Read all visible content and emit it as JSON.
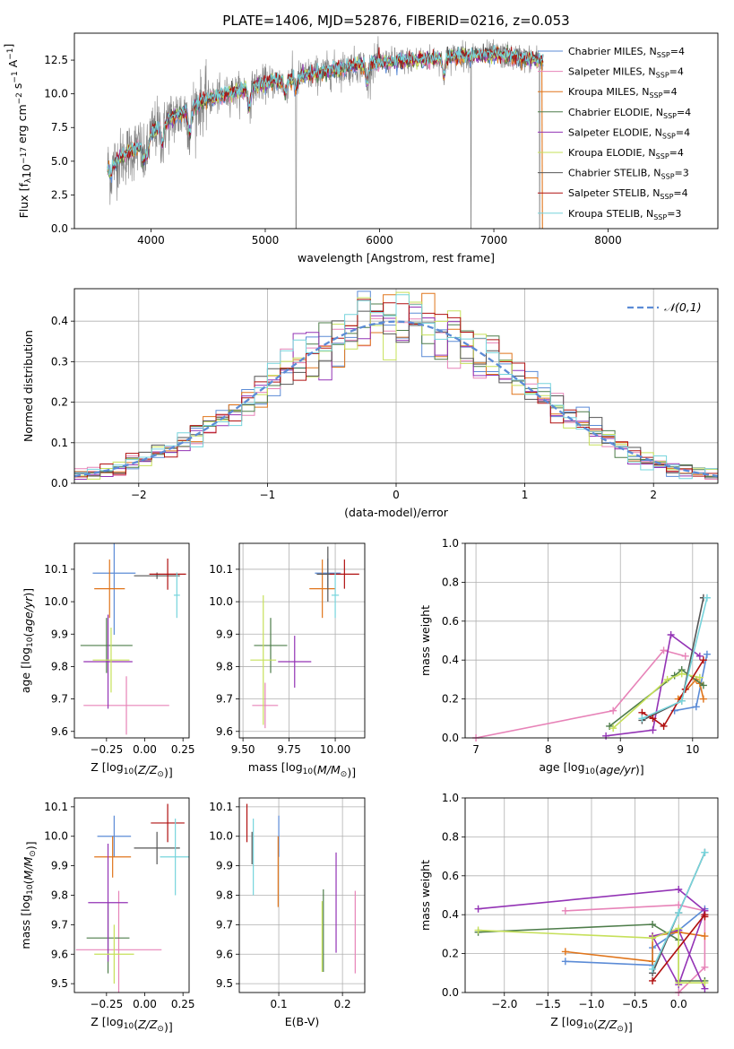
{
  "colors": {
    "Chabrier MILES": "#5b8bd6",
    "Salpeter MILES": "#e783b8",
    "Kroupa MILES": "#e0751b",
    "Chabrier ELODIE": "#4e7d4a",
    "Salpeter ELODIE": "#9333b5",
    "Kroupa ELODIE": "#c6e05a",
    "Chabrier STELIB": "#555555",
    "Salpeter STELIB": "#b01010",
    "Kroupa STELIB": "#76d4dc"
  },
  "chart_data": [
    {
      "id": "spectrum",
      "type": "line",
      "title": "PLATE=1406, MJD=52876, FIBERID=0216, z=0.053",
      "xlabel": "wavelength [Angstrom, rest frame]",
      "ylabel": "Flux [f_λ 10^-17 erg cm^-2 s^-1 A^-1]",
      "xlim": [
        3330,
        8960
      ],
      "ylim": [
        0,
        14.5
      ],
      "xticks": [
        4000,
        5000,
        6000,
        7000,
        8000
      ],
      "yticks": [
        0.0,
        2.5,
        5.0,
        7.5,
        10.0,
        12.5
      ],
      "grid": false,
      "legend_position": "top-right",
      "legend": [
        {
          "model": "Chabrier MILES",
          "nssp": "4"
        },
        {
          "model": "Salpeter MILES",
          "nssp": "4"
        },
        {
          "model": "Kroupa MILES",
          "nssp": "4"
        },
        {
          "model": "Chabrier ELODIE",
          "nssp": "4"
        },
        {
          "model": "Salpeter ELODIE",
          "nssp": "4"
        },
        {
          "model": "Kroupa ELODIE",
          "nssp": "4"
        },
        {
          "model": "Chabrier STELIB",
          "nssp": "3"
        },
        {
          "model": "Salpeter STELIB",
          "nssp": "4"
        },
        {
          "model": "Kroupa STELIB",
          "nssp": "3"
        }
      ],
      "data_x_range": [
        3620,
        7430
      ],
      "continuum": [
        [
          3620,
          4.6
        ],
        [
          3700,
          5.0
        ],
        [
          3800,
          5.6
        ],
        [
          3900,
          6.1
        ],
        [
          4000,
          7.0
        ],
        [
          4100,
          7.8
        ],
        [
          4300,
          8.7
        ],
        [
          4500,
          9.6
        ],
        [
          4800,
          10.3
        ],
        [
          5000,
          10.8
        ],
        [
          5200,
          11.1
        ],
        [
          5500,
          11.6
        ],
        [
          5800,
          12.1
        ],
        [
          6100,
          12.4
        ],
        [
          6400,
          12.6
        ],
        [
          6700,
          12.8
        ],
        [
          7000,
          12.9
        ],
        [
          7200,
          12.7
        ],
        [
          7430,
          12.5
        ]
      ],
      "absorption_lines": [
        [
          3650,
          0.8
        ],
        [
          3934,
          1.5
        ],
        [
          3968,
          1.3
        ],
        [
          4101,
          1.5
        ],
        [
          4340,
          2.0
        ],
        [
          4861,
          1.5
        ],
        [
          5175,
          1.2
        ],
        [
          5270,
          0.8
        ],
        [
          5893,
          1.3
        ],
        [
          6563,
          1.3
        ]
      ],
      "data_dropouts": [
        5270,
        6800,
        7400
      ]
    },
    {
      "id": "residuals",
      "type": "step-histogram",
      "xlabel": "(data-model)/error",
      "ylabel": "Normed distribution",
      "xlim": [
        -2.5,
        2.5
      ],
      "ylim": [
        0,
        0.48
      ],
      "xticks": [
        -2,
        -1,
        0,
        1,
        2
      ],
      "yticks": [
        0.0,
        0.1,
        0.2,
        0.3,
        0.4
      ],
      "grid": true,
      "legend": "𝒩(0,1)",
      "legend_position": "top-right",
      "bin_width": 0.1,
      "bin_start": -2.5,
      "reference_curve": {
        "type": "normal",
        "mean": 0,
        "sigma": 1
      }
    },
    {
      "id": "z-age",
      "type": "errorbar",
      "xlabel": "Z [log10(Z/Z⊙)]",
      "ylabel": "age  [log10(age/yr)]",
      "xlim": [
        -0.46,
        0.29
      ],
      "ylim": [
        9.58,
        10.18
      ],
      "xticks": [
        -0.25,
        0.0,
        0.25
      ],
      "xticklabels": [
        "−0.25",
        "0.00",
        "0.25"
      ],
      "yticks": [
        9.6,
        9.7,
        9.8,
        9.9,
        10.0,
        10.1
      ],
      "grid": false,
      "points": [
        {
          "model": "Chabrier MILES",
          "x": -0.2,
          "y": 10.088,
          "xerr": 0.14,
          "yerr": 0.19
        },
        {
          "model": "Salpeter MILES",
          "x": -0.12,
          "y": 9.68,
          "xerr": 0.28,
          "yerr": 0.09
        },
        {
          "model": "Kroupa MILES",
          "x": -0.23,
          "y": 10.04,
          "xerr": 0.1,
          "yerr": 0.09
        },
        {
          "model": "Chabrier ELODIE",
          "x": -0.25,
          "y": 9.865,
          "xerr": 0.17,
          "yerr": 0.085
        },
        {
          "model": "Salpeter ELODIE",
          "x": -0.24,
          "y": 9.815,
          "xerr": 0.16,
          "yerr": 0.145
        },
        {
          "model": "Kroupa ELODIE",
          "x": -0.22,
          "y": 9.82,
          "xerr": 0.12,
          "yerr": 0.1
        },
        {
          "model": "Chabrier STELIB",
          "x": 0.08,
          "y": 10.08,
          "xerr": 0.15,
          "yerr": 0.01
        },
        {
          "model": "Salpeter STELIB",
          "x": 0.15,
          "y": 10.085,
          "xerr": 0.12,
          "yerr": 0.048
        },
        {
          "model": "Kroupa STELIB",
          "x": 0.21,
          "y": 10.02,
          "xerr": 0.02,
          "yerr": 0.07
        }
      ]
    },
    {
      "id": "mass-age",
      "type": "errorbar",
      "xlabel": "mass [log10(M/M⊙)]",
      "ylabel": "",
      "xlim": [
        9.48,
        10.16
      ],
      "ylim": [
        9.58,
        10.18
      ],
      "xticks": [
        9.5,
        9.75,
        10.0
      ],
      "xticklabels": [
        "9.50",
        "9.75",
        "10.00"
      ],
      "yticks": [
        9.6,
        9.7,
        9.8,
        9.9,
        10.0,
        10.1
      ],
      "grid": true,
      "points": [
        {
          "model": "Chabrier MILES",
          "x": 9.96,
          "y": 10.088,
          "xerr": 0.07,
          "yerr": 0.045
        },
        {
          "model": "Salpeter MILES",
          "x": 9.62,
          "y": 9.68,
          "xerr": 0.07,
          "yerr": 0.07
        },
        {
          "model": "Kroupa MILES",
          "x": 9.93,
          "y": 10.04,
          "xerr": 0.07,
          "yerr": 0.09
        },
        {
          "model": "Chabrier ELODIE",
          "x": 9.65,
          "y": 9.865,
          "xerr": 0.09,
          "yerr": 0.085
        },
        {
          "model": "Salpeter ELODIE",
          "x": 9.78,
          "y": 9.815,
          "xerr": 0.09,
          "yerr": 0.08
        },
        {
          "model": "Kroupa ELODIE",
          "x": 9.61,
          "y": 9.82,
          "xerr": 0.07,
          "yerr": 0.2
        },
        {
          "model": "Chabrier STELIB",
          "x": 9.96,
          "y": 10.085,
          "xerr": 0.06,
          "yerr": 0.085
        },
        {
          "model": "Salpeter STELIB",
          "x": 10.05,
          "y": 10.085,
          "xerr": 0.08,
          "yerr": 0.045
        },
        {
          "model": "Kroupa STELIB",
          "x": 10.0,
          "y": 10.02,
          "xerr": 0.02,
          "yerr": 0.07
        }
      ]
    },
    {
      "id": "age-weight",
      "type": "line-markers",
      "xlabel": "age  [log10(age/yr)]",
      "ylabel": "mass weight",
      "xlim": [
        6.85,
        10.35
      ],
      "ylim": [
        0,
        1.0
      ],
      "xticks": [
        7,
        8,
        9,
        10
      ],
      "yticks": [
        0.0,
        0.2,
        0.4,
        0.6,
        0.8,
        1.0
      ],
      "grid": true,
      "series": [
        {
          "model": "Chabrier MILES",
          "x": [
            9.75,
            10.05,
            10.2
          ],
          "y": [
            0.14,
            0.16,
            0.43
          ]
        },
        {
          "model": "Salpeter MILES",
          "x": [
            7.0,
            8.9,
            9.6,
            9.9
          ],
          "y": [
            0.0,
            0.14,
            0.45,
            0.42
          ]
        },
        {
          "model": "Kroupa MILES",
          "x": [
            9.8,
            10.05,
            10.1,
            10.15
          ],
          "y": [
            0.2,
            0.3,
            0.28,
            0.2
          ]
        },
        {
          "model": "Chabrier ELODIE",
          "x": [
            8.85,
            9.75,
            9.85,
            10.15
          ],
          "y": [
            0.06,
            0.32,
            0.35,
            0.27
          ]
        },
        {
          "model": "Salpeter ELODIE",
          "x": [
            8.8,
            9.45,
            9.7,
            10.1
          ],
          "y": [
            0.01,
            0.04,
            0.53,
            0.42
          ]
        },
        {
          "model": "Kroupa ELODIE",
          "x": [
            8.9,
            9.65,
            9.85,
            10.1
          ],
          "y": [
            0.05,
            0.3,
            0.33,
            0.31
          ]
        },
        {
          "model": "Chabrier STELIB",
          "x": [
            9.3,
            9.85,
            10.15
          ],
          "y": [
            0.09,
            0.19,
            0.72
          ]
        },
        {
          "model": "Salpeter STELIB",
          "x": [
            9.3,
            9.45,
            9.6,
            9.9,
            10.15
          ],
          "y": [
            0.13,
            0.1,
            0.06,
            0.25,
            0.4
          ]
        },
        {
          "model": "Kroupa STELIB",
          "x": [
            9.3,
            9.85,
            10.2
          ],
          "y": [
            0.1,
            0.19,
            0.72
          ]
        }
      ]
    },
    {
      "id": "z-mass",
      "type": "errorbar",
      "xlabel": "Z [log10(Z/Z⊙)]",
      "ylabel": "mass [log10(M/M⊙)]",
      "xlim": [
        -0.46,
        0.29
      ],
      "ylim": [
        9.47,
        10.13
      ],
      "xticks": [
        -0.25,
        0.0,
        0.25
      ],
      "xticklabels": [
        "−0.25",
        "0.00",
        "0.25"
      ],
      "yticks": [
        9.5,
        9.6,
        9.7,
        9.8,
        9.9,
        10.0,
        10.1
      ],
      "grid": false,
      "points": [
        {
          "model": "Chabrier MILES",
          "x": -0.2,
          "y": 10.0,
          "xerr": 0.11,
          "yerr": 0.07
        },
        {
          "model": "Salpeter MILES",
          "x": -0.17,
          "y": 9.615,
          "xerr": 0.28,
          "yerr": 0.2
        },
        {
          "model": "Kroupa MILES",
          "x": -0.21,
          "y": 9.93,
          "xerr": 0.12,
          "yerr": 0.07
        },
        {
          "model": "Chabrier ELODIE",
          "x": -0.24,
          "y": 9.655,
          "xerr": 0.14,
          "yerr": 0.12
        },
        {
          "model": "Salpeter ELODIE",
          "x": -0.24,
          "y": 9.775,
          "xerr": 0.13,
          "yerr": 0.2
        },
        {
          "model": "Kroupa ELODIE",
          "x": -0.2,
          "y": 9.6,
          "xerr": 0.13,
          "yerr": 0.1
        },
        {
          "model": "Chabrier STELIB",
          "x": 0.08,
          "y": 9.96,
          "xerr": 0.15,
          "yerr": 0.055
        },
        {
          "model": "Salpeter STELIB",
          "x": 0.15,
          "y": 10.045,
          "xerr": 0.11,
          "yerr": 0.065
        },
        {
          "model": "Kroupa STELIB",
          "x": 0.2,
          "y": 9.93,
          "xerr": 0.1,
          "yerr": 0.13
        }
      ]
    },
    {
      "id": "ebv-mass",
      "type": "errorbar",
      "xlabel": "E(B-V)",
      "ylabel": "",
      "xlim": [
        0.038,
        0.235
      ],
      "ylim": [
        9.47,
        10.13
      ],
      "xticks": [
        0.1,
        0.2
      ],
      "xticklabels": [
        "0.1",
        "0.2"
      ],
      "yticks": [
        9.5,
        9.6,
        9.7,
        9.8,
        9.9,
        10.0,
        10.1
      ],
      "grid": true,
      "points": [
        {
          "model": "Salpeter STELIB",
          "x": 0.05,
          "y": 10.045,
          "xerr": 0,
          "yerr": 0.065
        },
        {
          "model": "Chabrier STELIB",
          "x": 0.058,
          "y": 9.96,
          "xerr": 0,
          "yerr": 0.055
        },
        {
          "model": "Kroupa STELIB",
          "x": 0.06,
          "y": 9.93,
          "xerr": 0,
          "yerr": 0.13
        },
        {
          "model": "Chabrier MILES",
          "x": 0.1,
          "y": 10.0,
          "xerr": 0,
          "yerr": 0.07
        },
        {
          "model": "Kroupa MILES",
          "x": 0.099,
          "y": 9.88,
          "xerr": 0,
          "yerr": 0.12
        },
        {
          "model": "Chabrier ELODIE",
          "x": 0.17,
          "y": 9.68,
          "xerr": 0,
          "yerr": 0.14
        },
        {
          "model": "Kroupa ELODIE",
          "x": 0.168,
          "y": 9.66,
          "xerr": 0,
          "yerr": 0.12
        },
        {
          "model": "Salpeter ELODIE",
          "x": 0.19,
          "y": 9.775,
          "xerr": 0,
          "yerr": 0.17
        },
        {
          "model": "Salpeter MILES",
          "x": 0.22,
          "y": 9.675,
          "xerr": 0,
          "yerr": 0.14
        }
      ]
    },
    {
      "id": "z-weight",
      "type": "line-markers",
      "xlabel": "Z [log10(Z/Z⊙)]",
      "ylabel": "mass weight",
      "xlim": [
        -2.45,
        0.45
      ],
      "ylim": [
        0,
        1.0
      ],
      "xticks": [
        -2.0,
        -1.5,
        -1.0,
        -0.5,
        0.0
      ],
      "xticklabels": [
        "−2.0",
        "−1.5",
        "−1.0",
        "−0.5",
        "0.0"
      ],
      "yticks": [
        0.0,
        0.2,
        0.4,
        0.6,
        0.8,
        1.0
      ],
      "grid": true,
      "series": [
        {
          "model": "Chabrier MILES",
          "x": [
            -1.3,
            -0.3,
            -0.3,
            0.0,
            0.3
          ],
          "y": [
            0.16,
            0.14,
            0.23,
            0.32,
            0.43
          ]
        },
        {
          "model": "Salpeter MILES",
          "x": [
            -1.3,
            0.0,
            0.3,
            0.3,
            0.0
          ],
          "y": [
            0.42,
            0.45,
            0.42,
            0.13,
            0.0
          ]
        },
        {
          "model": "Kroupa MILES",
          "x": [
            -1.3,
            -0.3,
            -0.3,
            0.0,
            0.3
          ],
          "y": [
            0.21,
            0.16,
            0.29,
            0.31,
            0.29
          ]
        },
        {
          "model": "Chabrier ELODIE",
          "x": [
            -2.3,
            -0.3,
            0.0,
            0.0,
            0.3
          ],
          "y": [
            0.31,
            0.35,
            0.27,
            0.06,
            0.06
          ]
        },
        {
          "model": "Salpeter ELODIE",
          "x": [
            -2.3,
            0.0,
            0.3,
            0.0,
            -0.3,
            0.0,
            0.3
          ],
          "y": [
            0.43,
            0.53,
            0.42,
            0.04,
            0.29,
            0.32,
            0.02
          ]
        },
        {
          "model": "Kroupa ELODIE",
          "x": [
            -2.3,
            -0.3,
            0.0,
            0.0,
            0.3
          ],
          "y": [
            0.32,
            0.28,
            0.33,
            0.05,
            0.05
          ]
        },
        {
          "model": "Chabrier STELIB",
          "x": [
            -0.3,
            0.0,
            0.3
          ],
          "y": [
            0.1,
            0.41,
            0.72
          ]
        },
        {
          "model": "Salpeter STELIB",
          "x": [
            -0.3,
            0.3,
            0.3
          ],
          "y": [
            0.06,
            0.4,
            0.39
          ]
        },
        {
          "model": "Kroupa STELIB",
          "x": [
            -0.3,
            0.0,
            0.3
          ],
          "y": [
            0.12,
            0.41,
            0.72
          ]
        }
      ]
    }
  ]
}
